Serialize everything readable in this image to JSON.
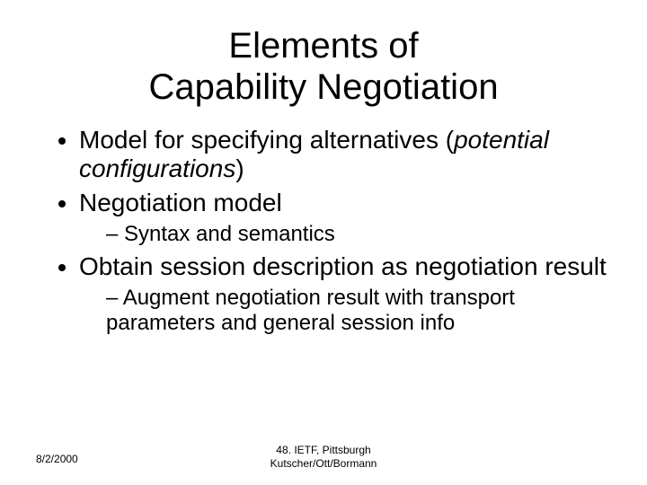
{
  "title_line1": "Elements of",
  "title_line2": "Capability Negotiation",
  "bullets": {
    "b1_pre": "Model for specifying alternatives (",
    "b1_italic": "potential configurations",
    "b1_post": ")",
    "b2": "Negotiation model",
    "b2_sub1": "Syntax and semantics",
    "b3": "Obtain session description as negotiation result",
    "b3_sub1": "Augment negotiation result with transport parameters and general session info"
  },
  "footer": {
    "date": "8/2/2000",
    "center_line1": "48. IETF, Pittsburgh",
    "center_line2": "Kutscher/Ott/Bormann"
  },
  "style": {
    "background_color": "#ffffff",
    "text_color": "#000000",
    "title_fontsize": 40,
    "body_fontsize": 28,
    "sub_fontsize": 24,
    "footer_fontsize": 12
  }
}
